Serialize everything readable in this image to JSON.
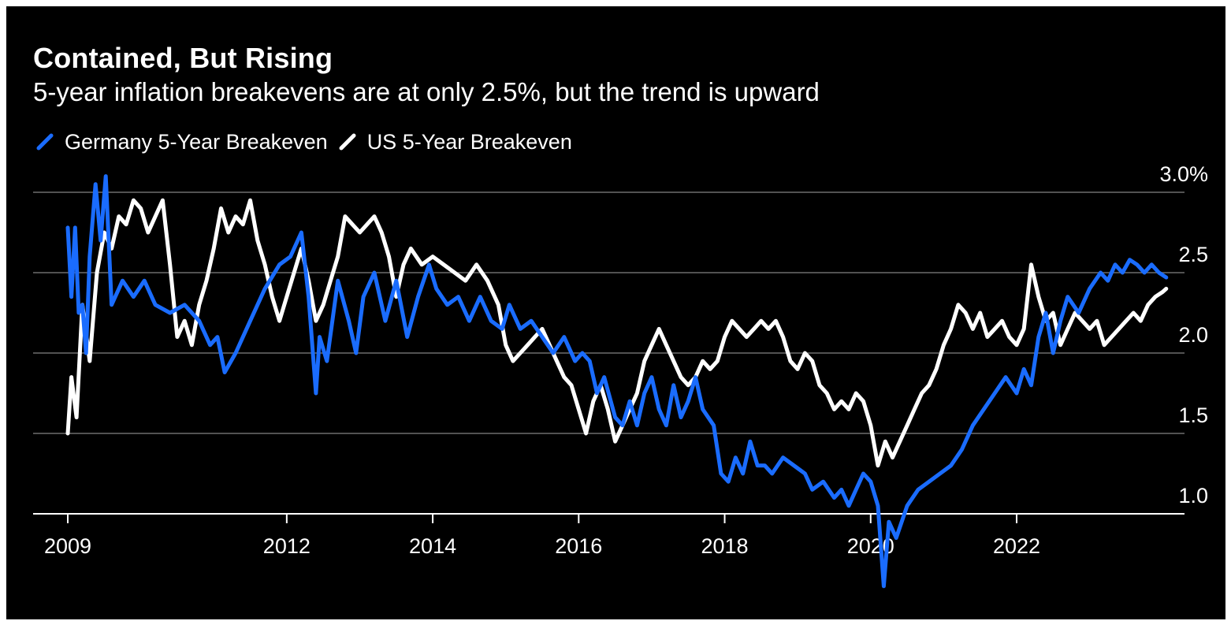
{
  "chart": {
    "title": "Contained, But Rising",
    "subtitle": "5-year inflation breakevens are at only 2.5%, but the trend is upward"
  },
  "colors": {
    "background": "#000000",
    "germany": "#1a6cff",
    "us": "#ffffff",
    "grid": "#6e6e6e"
  },
  "chart_data": {
    "type": "line",
    "title": "Contained, But Rising",
    "subtitle": "5-year inflation breakevens are at only 2.5%, but the trend is upward",
    "xlim": [
      2009,
      2024.3
    ],
    "ylim": [
      1.0,
      3.0
    ],
    "y_ticks": [
      1.0,
      1.5,
      2.0,
      2.5,
      3.0
    ],
    "y_tick_labels": [
      "1.0",
      "1.5",
      "2.0",
      "2.5",
      "3.0%"
    ],
    "x_ticks": [
      2009,
      2012,
      2014,
      2016,
      2018,
      2020,
      2022
    ],
    "x_tick_labels": [
      "2009",
      "2012",
      "2014",
      "2016",
      "2018",
      "2020",
      "2022"
    ],
    "grid": true,
    "legend_position": "top-left",
    "series": [
      {
        "name": "Germany 5-Year Breakeven",
        "color": "#1a6cff",
        "points": [
          [
            2009.0,
            2.78
          ],
          [
            2009.05,
            2.35
          ],
          [
            2009.1,
            2.78
          ],
          [
            2009.15,
            2.25
          ],
          [
            2009.2,
            2.3
          ],
          [
            2009.25,
            2.0
          ],
          [
            2009.3,
            2.6
          ],
          [
            2009.38,
            3.05
          ],
          [
            2009.45,
            2.7
          ],
          [
            2009.52,
            3.1
          ],
          [
            2009.6,
            2.3
          ],
          [
            2009.75,
            2.45
          ],
          [
            2009.9,
            2.35
          ],
          [
            2010.05,
            2.45
          ],
          [
            2010.2,
            2.3
          ],
          [
            2010.4,
            2.25
          ],
          [
            2010.6,
            2.3
          ],
          [
            2010.8,
            2.2
          ],
          [
            2010.95,
            2.05
          ],
          [
            2011.05,
            2.1
          ],
          [
            2011.15,
            1.88
          ],
          [
            2011.3,
            2.0
          ],
          [
            2011.5,
            2.2
          ],
          [
            2011.7,
            2.4
          ],
          [
            2011.9,
            2.55
          ],
          [
            2012.05,
            2.6
          ],
          [
            2012.2,
            2.75
          ],
          [
            2012.3,
            2.35
          ],
          [
            2012.4,
            1.75
          ],
          [
            2012.45,
            2.1
          ],
          [
            2012.55,
            1.95
          ],
          [
            2012.7,
            2.45
          ],
          [
            2012.85,
            2.2
          ],
          [
            2012.95,
            2.0
          ],
          [
            2013.05,
            2.35
          ],
          [
            2013.2,
            2.5
          ],
          [
            2013.35,
            2.2
          ],
          [
            2013.5,
            2.45
          ],
          [
            2013.65,
            2.1
          ],
          [
            2013.8,
            2.35
          ],
          [
            2013.95,
            2.55
          ],
          [
            2014.05,
            2.4
          ],
          [
            2014.2,
            2.3
          ],
          [
            2014.35,
            2.35
          ],
          [
            2014.5,
            2.2
          ],
          [
            2014.65,
            2.35
          ],
          [
            2014.8,
            2.2
          ],
          [
            2014.95,
            2.15
          ],
          [
            2015.05,
            2.3
          ],
          [
            2015.2,
            2.15
          ],
          [
            2015.35,
            2.2
          ],
          [
            2015.5,
            2.1
          ],
          [
            2015.65,
            2.0
          ],
          [
            2015.8,
            2.1
          ],
          [
            2015.95,
            1.95
          ],
          [
            2016.05,
            2.0
          ],
          [
            2016.15,
            1.95
          ],
          [
            2016.25,
            1.75
          ],
          [
            2016.35,
            1.85
          ],
          [
            2016.5,
            1.6
          ],
          [
            2016.6,
            1.55
          ],
          [
            2016.7,
            1.7
          ],
          [
            2016.8,
            1.55
          ],
          [
            2016.9,
            1.75
          ],
          [
            2017.0,
            1.85
          ],
          [
            2017.1,
            1.65
          ],
          [
            2017.2,
            1.55
          ],
          [
            2017.3,
            1.8
          ],
          [
            2017.4,
            1.6
          ],
          [
            2017.5,
            1.7
          ],
          [
            2017.6,
            1.85
          ],
          [
            2017.7,
            1.65
          ],
          [
            2017.85,
            1.55
          ],
          [
            2017.95,
            1.25
          ],
          [
            2018.05,
            1.2
          ],
          [
            2018.15,
            1.35
          ],
          [
            2018.25,
            1.25
          ],
          [
            2018.35,
            1.45
          ],
          [
            2018.45,
            1.3
          ],
          [
            2018.55,
            1.3
          ],
          [
            2018.65,
            1.25
          ],
          [
            2018.8,
            1.35
          ],
          [
            2018.95,
            1.3
          ],
          [
            2019.1,
            1.25
          ],
          [
            2019.2,
            1.15
          ],
          [
            2019.35,
            1.2
          ],
          [
            2019.5,
            1.1
          ],
          [
            2019.6,
            1.15
          ],
          [
            2019.7,
            1.05
          ],
          [
            2019.8,
            1.15
          ],
          [
            2019.9,
            1.25
          ],
          [
            2020.0,
            1.2
          ],
          [
            2020.1,
            1.05
          ],
          [
            2020.18,
            0.55
          ],
          [
            2020.25,
            0.95
          ],
          [
            2020.35,
            0.85
          ],
          [
            2020.5,
            1.05
          ],
          [
            2020.65,
            1.15
          ],
          [
            2020.8,
            1.2
          ],
          [
            2020.95,
            1.25
          ],
          [
            2021.1,
            1.3
          ],
          [
            2021.25,
            1.4
          ],
          [
            2021.4,
            1.55
          ],
          [
            2021.55,
            1.65
          ],
          [
            2021.7,
            1.75
          ],
          [
            2021.85,
            1.85
          ],
          [
            2022.0,
            1.75
          ],
          [
            2022.1,
            1.9
          ],
          [
            2022.2,
            1.8
          ],
          [
            2022.3,
            2.1
          ],
          [
            2022.4,
            2.25
          ],
          [
            2022.5,
            2.0
          ],
          [
            2022.6,
            2.2
          ],
          [
            2022.7,
            2.35
          ],
          [
            2022.85,
            2.25
          ],
          [
            2023.0,
            2.4
          ],
          [
            2023.15,
            2.5
          ],
          [
            2023.25,
            2.45
          ],
          [
            2023.35,
            2.55
          ],
          [
            2023.45,
            2.5
          ],
          [
            2023.55,
            2.58
          ],
          [
            2023.65,
            2.55
          ],
          [
            2023.75,
            2.5
          ],
          [
            2023.85,
            2.55
          ],
          [
            2023.95,
            2.5
          ],
          [
            2024.05,
            2.47
          ]
        ]
      },
      {
        "name": "US 5-Year Breakeven",
        "color": "#ffffff",
        "points": [
          [
            2009.0,
            1.5
          ],
          [
            2009.05,
            1.85
          ],
          [
            2009.12,
            1.6
          ],
          [
            2009.2,
            2.3
          ],
          [
            2009.3,
            1.95
          ],
          [
            2009.4,
            2.5
          ],
          [
            2009.5,
            2.75
          ],
          [
            2009.6,
            2.65
          ],
          [
            2009.7,
            2.85
          ],
          [
            2009.8,
            2.8
          ],
          [
            2009.9,
            2.95
          ],
          [
            2010.0,
            2.9
          ],
          [
            2010.1,
            2.75
          ],
          [
            2010.2,
            2.85
          ],
          [
            2010.3,
            2.95
          ],
          [
            2010.4,
            2.55
          ],
          [
            2010.5,
            2.1
          ],
          [
            2010.6,
            2.2
          ],
          [
            2010.7,
            2.05
          ],
          [
            2010.8,
            2.3
          ],
          [
            2010.9,
            2.45
          ],
          [
            2011.0,
            2.65
          ],
          [
            2011.1,
            2.9
          ],
          [
            2011.2,
            2.75
          ],
          [
            2011.3,
            2.85
          ],
          [
            2011.4,
            2.8
          ],
          [
            2011.5,
            2.95
          ],
          [
            2011.6,
            2.7
          ],
          [
            2011.7,
            2.55
          ],
          [
            2011.8,
            2.35
          ],
          [
            2011.9,
            2.2
          ],
          [
            2012.0,
            2.35
          ],
          [
            2012.1,
            2.5
          ],
          [
            2012.2,
            2.65
          ],
          [
            2012.3,
            2.45
          ],
          [
            2012.4,
            2.2
          ],
          [
            2012.5,
            2.3
          ],
          [
            2012.6,
            2.45
          ],
          [
            2012.7,
            2.6
          ],
          [
            2012.8,
            2.85
          ],
          [
            2012.9,
            2.8
          ],
          [
            2013.0,
            2.75
          ],
          [
            2013.1,
            2.8
          ],
          [
            2013.2,
            2.85
          ],
          [
            2013.3,
            2.75
          ],
          [
            2013.4,
            2.6
          ],
          [
            2013.5,
            2.35
          ],
          [
            2013.6,
            2.55
          ],
          [
            2013.7,
            2.65
          ],
          [
            2013.85,
            2.55
          ],
          [
            2014.0,
            2.6
          ],
          [
            2014.15,
            2.55
          ],
          [
            2014.3,
            2.5
          ],
          [
            2014.45,
            2.45
          ],
          [
            2014.6,
            2.55
          ],
          [
            2014.75,
            2.45
          ],
          [
            2014.9,
            2.3
          ],
          [
            2015.0,
            2.05
          ],
          [
            2015.1,
            1.95
          ],
          [
            2015.2,
            2.0
          ],
          [
            2015.3,
            2.05
          ],
          [
            2015.4,
            2.1
          ],
          [
            2015.5,
            2.15
          ],
          [
            2015.6,
            2.05
          ],
          [
            2015.7,
            1.95
          ],
          [
            2015.8,
            1.85
          ],
          [
            2015.9,
            1.8
          ],
          [
            2016.0,
            1.65
          ],
          [
            2016.1,
            1.5
          ],
          [
            2016.2,
            1.7
          ],
          [
            2016.3,
            1.8
          ],
          [
            2016.4,
            1.65
          ],
          [
            2016.5,
            1.45
          ],
          [
            2016.6,
            1.55
          ],
          [
            2016.7,
            1.65
          ],
          [
            2016.8,
            1.75
          ],
          [
            2016.9,
            1.95
          ],
          [
            2017.0,
            2.05
          ],
          [
            2017.1,
            2.15
          ],
          [
            2017.2,
            2.05
          ],
          [
            2017.3,
            1.95
          ],
          [
            2017.4,
            1.85
          ],
          [
            2017.5,
            1.8
          ],
          [
            2017.6,
            1.85
          ],
          [
            2017.7,
            1.95
          ],
          [
            2017.8,
            1.9
          ],
          [
            2017.9,
            1.95
          ],
          [
            2018.0,
            2.1
          ],
          [
            2018.1,
            2.2
          ],
          [
            2018.2,
            2.15
          ],
          [
            2018.3,
            2.1
          ],
          [
            2018.4,
            2.15
          ],
          [
            2018.5,
            2.2
          ],
          [
            2018.6,
            2.15
          ],
          [
            2018.7,
            2.2
          ],
          [
            2018.8,
            2.1
          ],
          [
            2018.9,
            1.95
          ],
          [
            2019.0,
            1.9
          ],
          [
            2019.1,
            2.0
          ],
          [
            2019.2,
            1.95
          ],
          [
            2019.3,
            1.8
          ],
          [
            2019.4,
            1.75
          ],
          [
            2019.5,
            1.65
          ],
          [
            2019.6,
            1.7
          ],
          [
            2019.7,
            1.65
          ],
          [
            2019.8,
            1.75
          ],
          [
            2019.9,
            1.7
          ],
          [
            2020.0,
            1.55
          ],
          [
            2020.1,
            1.3
          ],
          [
            2020.2,
            1.45
          ],
          [
            2020.3,
            1.35
          ],
          [
            2020.4,
            1.45
          ],
          [
            2020.5,
            1.55
          ],
          [
            2020.6,
            1.65
          ],
          [
            2020.7,
            1.75
          ],
          [
            2020.8,
            1.8
          ],
          [
            2020.9,
            1.9
          ],
          [
            2021.0,
            2.05
          ],
          [
            2021.1,
            2.15
          ],
          [
            2021.2,
            2.3
          ],
          [
            2021.3,
            2.25
          ],
          [
            2021.4,
            2.15
          ],
          [
            2021.5,
            2.25
          ],
          [
            2021.6,
            2.1
          ],
          [
            2021.7,
            2.15
          ],
          [
            2021.8,
            2.2
          ],
          [
            2021.9,
            2.1
          ],
          [
            2022.0,
            2.05
          ],
          [
            2022.1,
            2.15
          ],
          [
            2022.2,
            2.55
          ],
          [
            2022.3,
            2.35
          ],
          [
            2022.4,
            2.2
          ],
          [
            2022.5,
            2.25
          ],
          [
            2022.6,
            2.05
          ],
          [
            2022.7,
            2.15
          ],
          [
            2022.8,
            2.25
          ],
          [
            2022.9,
            2.2
          ],
          [
            2023.0,
            2.15
          ],
          [
            2023.1,
            2.2
          ],
          [
            2023.2,
            2.05
          ],
          [
            2023.3,
            2.1
          ],
          [
            2023.4,
            2.15
          ],
          [
            2023.5,
            2.2
          ],
          [
            2023.6,
            2.25
          ],
          [
            2023.7,
            2.2
          ],
          [
            2023.8,
            2.3
          ],
          [
            2023.9,
            2.35
          ],
          [
            2024.0,
            2.38
          ],
          [
            2024.05,
            2.4
          ]
        ]
      }
    ]
  }
}
